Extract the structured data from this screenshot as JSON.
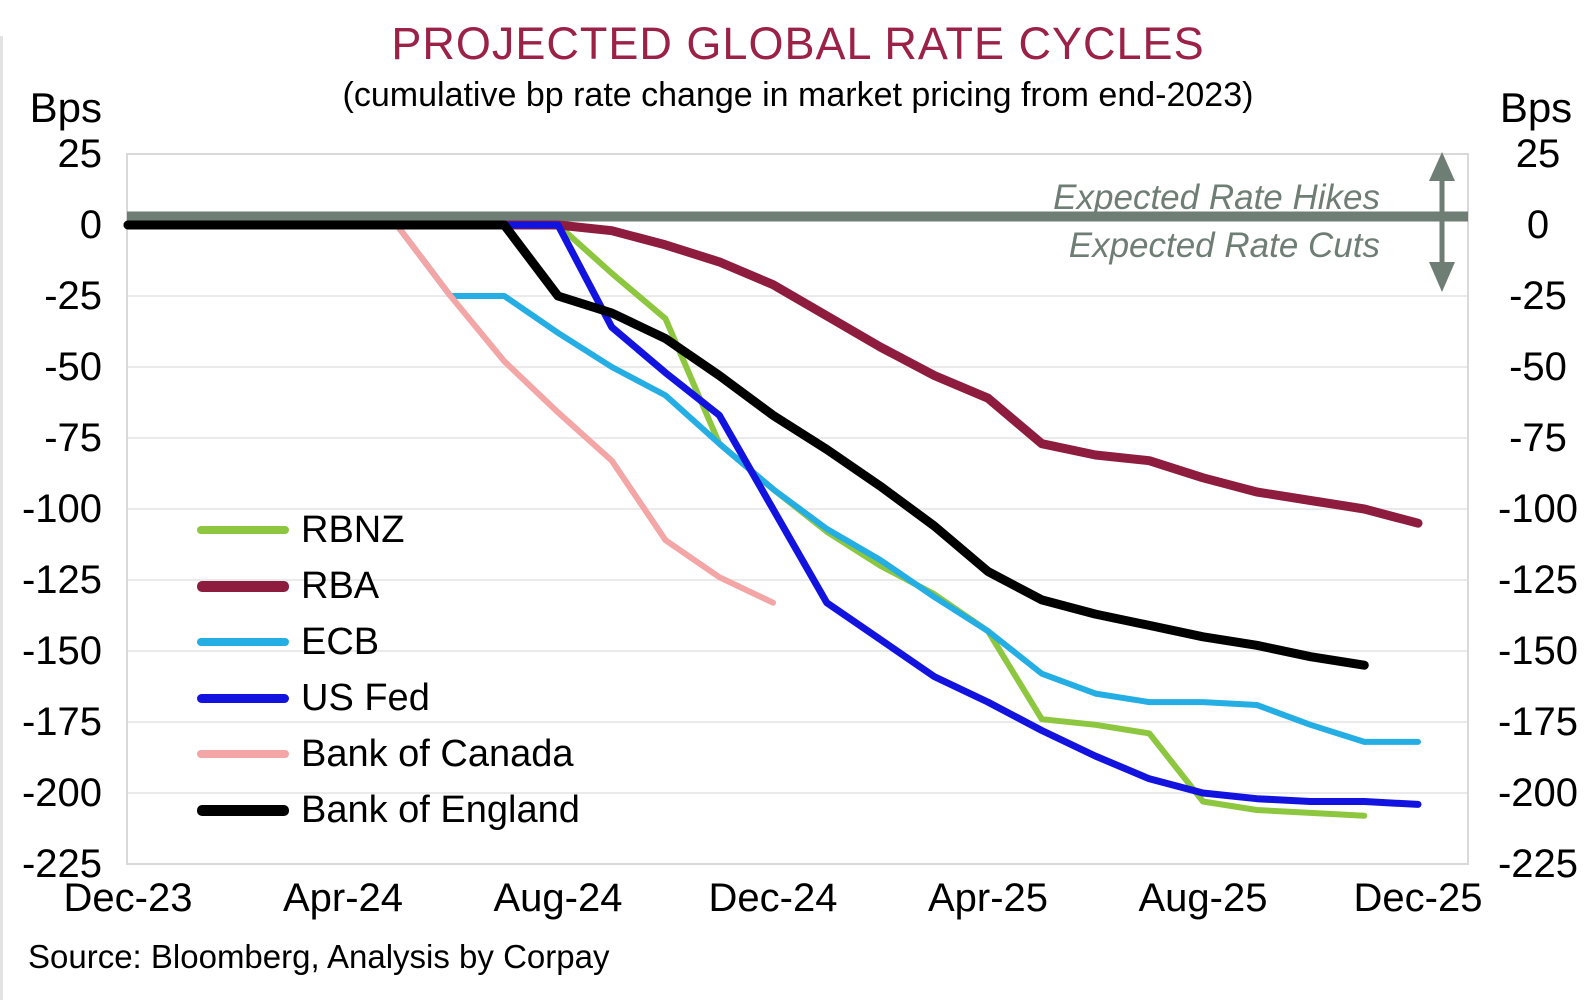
{
  "title": {
    "text": "PROJECTED GLOBAL RATE CYCLES",
    "color": "#9B2147"
  },
  "subtitle": "(cumulative bp rate change in market pricing from end-2023)",
  "source": "Source: Bloomberg, Analysis by Corpay",
  "y_axis": {
    "unit_label_left": "Bps",
    "unit_label_right": "Bps",
    "ticks": [
      25,
      0,
      -25,
      -50,
      -75,
      -100,
      -125,
      -150,
      -175,
      -200,
      -225
    ]
  },
  "x_axis": {
    "tick_labels": [
      "Dec-23",
      "Apr-24",
      "Aug-24",
      "Dec-24",
      "Apr-25",
      "Aug-25",
      "Dec-25"
    ]
  },
  "annotations": {
    "above_zero": "Expected Rate Hikes",
    "below_zero": "Expected Rate Cuts",
    "arrow": "double-headed-vertical-arrow",
    "color": "#6E7E74"
  },
  "chart_style": {
    "zero_line_color": "#6E7E74",
    "gridline_color": "#EAEAEA",
    "border_color": "#D9D9D9",
    "background": "#FFFFFF"
  },
  "legend": {
    "items": [
      "RBNZ",
      "RBA",
      "ECB",
      "US Fed",
      "Bank of Canada",
      "Bank of England"
    ]
  },
  "chart_data": {
    "type": "line",
    "x_months": [
      "Dec-23",
      "Jan-24",
      "Feb-24",
      "Mar-24",
      "Apr-24",
      "May-24",
      "Jun-24",
      "Jul-24",
      "Aug-24",
      "Sep-24",
      "Oct-24",
      "Nov-24",
      "Dec-24",
      "Jan-25",
      "Feb-25",
      "Mar-25",
      "Apr-25",
      "May-25",
      "Jun-25",
      "Jul-25",
      "Aug-25",
      "Sep-25",
      "Oct-25",
      "Nov-25",
      "Dec-25"
    ],
    "x_tick_every": 4,
    "ylim": [
      -225,
      25
    ],
    "y_unit": "bp cumulative change vs end-2023",
    "series": [
      {
        "name": "RBNZ",
        "color": "#8DC63F",
        "width": 6,
        "values": [
          0,
          0,
          0,
          0,
          0,
          0,
          0,
          0,
          0,
          -17,
          -33,
          -77,
          -93,
          -108,
          -120,
          -130,
          -143,
          -174,
          -176,
          -179,
          -203,
          -206,
          -207,
          -208,
          null
        ]
      },
      {
        "name": "RBA",
        "color": "#8E1C3E",
        "width": 9,
        "values": [
          0,
          0,
          0,
          0,
          0,
          0,
          0,
          0,
          0,
          -2,
          -7,
          -13,
          -21,
          -32,
          -43,
          -53,
          -61,
          -77,
          -81,
          -83,
          -89,
          -94,
          -97,
          -100,
          -105
        ]
      },
      {
        "name": "ECB",
        "color": "#25AEE4",
        "width": 6,
        "values": [
          0,
          0,
          0,
          0,
          0,
          0,
          -25,
          -25,
          -38,
          -50,
          -60,
          -77,
          -93,
          -107,
          -118,
          -131,
          -143,
          -158,
          -165,
          -168,
          -168,
          -169,
          -176,
          -182,
          -182
        ]
      },
      {
        "name": "US Fed",
        "color": "#1313E0",
        "width": 7,
        "values": [
          0,
          0,
          0,
          0,
          0,
          0,
          0,
          0,
          0,
          -36,
          -52,
          -67,
          -100,
          -133,
          -146,
          -159,
          -168,
          -178,
          -187,
          -195,
          -200,
          -202,
          -203,
          -203,
          -204
        ]
      },
      {
        "name": "Bank of Canada",
        "color": "#F4A5A5",
        "width": 6,
        "values": [
          0,
          0,
          0,
          0,
          0,
          0,
          -25,
          -48,
          -66,
          -83,
          -111,
          -124,
          -133,
          null,
          null,
          null,
          null,
          null,
          null,
          null,
          null,
          null,
          null,
          null,
          null
        ]
      },
      {
        "name": "Bank of England",
        "color": "#000000",
        "width": 9,
        "values": [
          0,
          0,
          0,
          0,
          0,
          0,
          0,
          0,
          -25,
          -31,
          -40,
          -53,
          -67,
          -79,
          -92,
          -106,
          -122,
          -132,
          -137,
          -141,
          -145,
          -148,
          -152,
          -155,
          null
        ]
      }
    ]
  }
}
